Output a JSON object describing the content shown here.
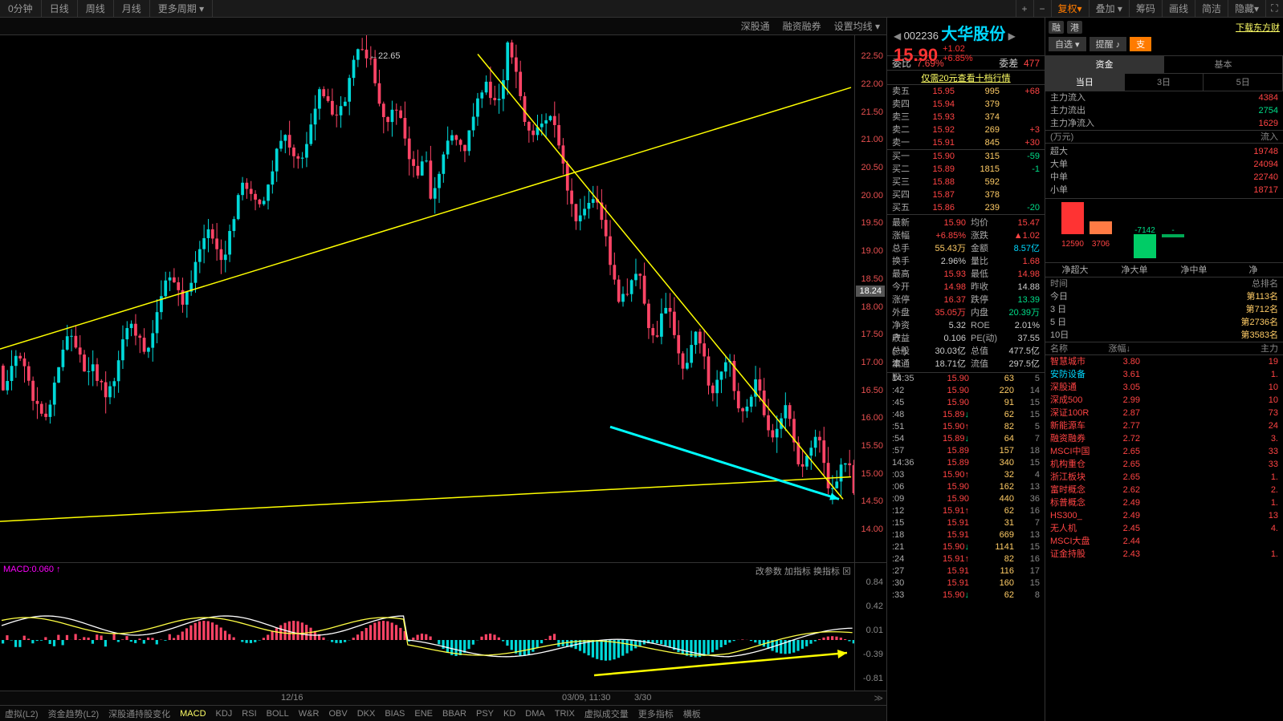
{
  "topbar": {
    "tabs": [
      "0分钟",
      "日线",
      "周线",
      "月线",
      "更多周期 ▾"
    ],
    "icons_plus": "+",
    "icons_minus": "−",
    "btn_fq": "复权▾",
    "btn_dj": "叠加 ▾",
    "btn_cm": "筹码",
    "btn_hx": "画线",
    "btn_jj": "简洁",
    "btn_yc": "隐藏▾"
  },
  "subtoolbar": {
    "a": "深股通",
    "b": "融资融券",
    "c": "设置均线 ▾"
  },
  "chart": {
    "high_label": "22.65",
    "yticks": [
      22.5,
      22.0,
      21.5,
      21.0,
      20.5,
      20.0,
      19.5,
      19.0,
      18.5,
      18.0,
      17.5,
      17.0,
      16.5,
      16.0,
      15.5,
      15.0,
      14.5,
      14.0
    ],
    "y_current": 18.24,
    "dates": {
      "d1": "12/16",
      "d2": "03/09, 11:30",
      "d3": "3/30"
    },
    "indicators": [
      "虚拟(L2)",
      "资金趋势(L2)",
      "深股通持股变化",
      "MACD",
      "KDJ",
      "RSI",
      "BOLL",
      "W&R",
      "OBV",
      "DKX",
      "BIAS",
      "ENE",
      "BBAR",
      "PSY",
      "KD",
      "DMA",
      "TRIX",
      "虚拟成交量",
      "更多指标",
      "横板"
    ]
  },
  "macd": {
    "label": "MACD:0.060 ↑",
    "right": "改参数 加指标 换指标 ⊠",
    "yticks": [
      0.84,
      0.42,
      0.01,
      -0.39,
      -0.81
    ]
  },
  "stock": {
    "code": "002236",
    "name": "大华股份",
    "price": "15.90",
    "chg": "+1.02",
    "pct": "+6.85%",
    "ratio_l": "委比",
    "ratio_lv": "7.69%",
    "ratio_r": "委差",
    "ratio_rv": "477",
    "promo": "仅需20元查看十档行情",
    "asks": [
      [
        "卖五",
        "15.95",
        "995",
        "+68"
      ],
      [
        "卖四",
        "15.94",
        "379",
        ""
      ],
      [
        "卖三",
        "15.93",
        "374",
        ""
      ],
      [
        "卖二",
        "15.92",
        "269",
        "+3"
      ],
      [
        "卖一",
        "15.91",
        "845",
        "+30"
      ]
    ],
    "bids": [
      [
        "买一",
        "15.90",
        "315",
        "-59"
      ],
      [
        "买二",
        "15.89",
        "1815",
        "-1"
      ],
      [
        "买三",
        "15.88",
        "592",
        ""
      ],
      [
        "买四",
        "15.87",
        "378",
        ""
      ],
      [
        "买五",
        "15.86",
        "239",
        "-20"
      ]
    ],
    "stats": [
      [
        "最新",
        "15.90",
        "均价",
        "15.47",
        "red",
        "red"
      ],
      [
        "涨幅",
        "+6.85%",
        "涨跌",
        "▲1.02",
        "red",
        "red"
      ],
      [
        "总手",
        "55.43万",
        "金额",
        "8.57亿",
        "yel",
        "cyan"
      ],
      [
        "换手",
        "2.96%",
        "量比",
        "1.68",
        "wht",
        "red"
      ],
      [
        "最高",
        "15.93",
        "最低",
        "14.98",
        "red",
        "red"
      ],
      [
        "今开",
        "14.98",
        "昨收",
        "14.88",
        "red",
        "wht"
      ],
      [
        "涨停",
        "16.37",
        "跌停",
        "13.39",
        "red",
        "grn"
      ],
      [
        "外盘",
        "35.05万",
        "内盘",
        "20.39万",
        "red",
        "grn"
      ],
      [
        "净资产",
        "5.32",
        "ROE",
        "2.01%",
        "wht",
        "wht"
      ],
      [
        "收益(一)",
        "0.106",
        "PE(动)",
        "37.55",
        "wht",
        "wht"
      ],
      [
        "总股本",
        "30.03亿",
        "总值",
        "477.5亿",
        "wht",
        "wht"
      ],
      [
        "流通股",
        "18.71亿",
        "流值",
        "297.5亿",
        "wht",
        "wht"
      ]
    ],
    "ticks": [
      [
        "14:35",
        "15.90",
        "",
        "63",
        "5"
      ],
      [
        ":42",
        "15.90",
        "",
        "220",
        "14"
      ],
      [
        ":45",
        "15.90",
        "",
        "91",
        "15"
      ],
      [
        ":48",
        "15.89",
        "dn",
        "62",
        "15"
      ],
      [
        ":51",
        "15.90",
        "up",
        "82",
        "5"
      ],
      [
        ":54",
        "15.89",
        "dn",
        "64",
        "7"
      ],
      [
        ":57",
        "15.89",
        "",
        "157",
        "18"
      ],
      [
        "14:36",
        "15.89",
        "",
        "340",
        "15"
      ],
      [
        ":03",
        "15.90",
        "up",
        "32",
        "4"
      ],
      [
        ":06",
        "15.90",
        "",
        "162",
        "13"
      ],
      [
        ":09",
        "15.90",
        "",
        "440",
        "36"
      ],
      [
        ":12",
        "15.91",
        "up",
        "62",
        "16"
      ],
      [
        ":15",
        "15.91",
        "",
        "31",
        "7"
      ],
      [
        ":18",
        "15.91",
        "",
        "669",
        "13"
      ],
      [
        ":21",
        "15.90",
        "dn",
        "1141",
        "15"
      ],
      [
        ":24",
        "15.91",
        "up",
        "82",
        "16"
      ],
      [
        ":27",
        "15.91",
        "",
        "116",
        "17"
      ],
      [
        ":30",
        "15.91",
        "",
        "160",
        "15"
      ],
      [
        ":33",
        "15.90",
        "dn",
        "62",
        "8"
      ]
    ]
  },
  "right2": {
    "badge1": "融",
    "badge2": "港",
    "dl": "下载东方财",
    "b1": "自选 ▾",
    "b2": "提醒 ♪",
    "b3": "支",
    "tabs_main": [
      "资金",
      "基本"
    ],
    "tab_main_on": 0,
    "tabs_day": [
      "当日",
      "3日",
      "5日"
    ],
    "tab_day_on": 0,
    "flows": [
      [
        "主力流入",
        "4384",
        "red"
      ],
      [
        "主力流出",
        "2754",
        "grn"
      ],
      [
        "主力净流入",
        "1629",
        "red"
      ]
    ],
    "unit": "(万元)",
    "unit_r": "流入",
    "orders": [
      [
        "超大",
        "19748"
      ],
      [
        "大单",
        "24094"
      ],
      [
        "中单",
        "22740"
      ],
      [
        "小单",
        "18717"
      ]
    ],
    "bars": {
      "b1": {
        "h": 50,
        "c": "#ff3333",
        "v": "12590"
      },
      "b2": {
        "h": 16,
        "c": "#ff7b44",
        "v": "3706"
      },
      "b3": {
        "h": 30,
        "c": "#00cc66",
        "v": "-7142"
      },
      "b4": {
        "h": 4,
        "c": "#00aa55",
        "v": "-"
      }
    },
    "net_labels": [
      "净超大",
      "净大单",
      "净中单",
      "净"
    ],
    "rank_hdr": [
      "时间",
      "总排名"
    ],
    "ranks": [
      [
        "今日",
        "第113名"
      ],
      [
        "3 日",
        "第712名"
      ],
      [
        "5 日",
        "第2736名"
      ],
      [
        "10日",
        "第3583名"
      ]
    ],
    "sec_hdr": [
      "名称",
      "涨幅↓",
      "主力"
    ],
    "sectors": [
      [
        "智慧城市",
        "3.80",
        "19",
        "red",
        "red"
      ],
      [
        "安防设备",
        "3.61",
        "1.",
        "cyan",
        "red"
      ],
      [
        "深股通",
        "3.05",
        "10",
        "red",
        "red"
      ],
      [
        "深成500",
        "2.99",
        "10",
        "red",
        "red"
      ],
      [
        "深证100R",
        "2.87",
        "73",
        "red",
        "red"
      ],
      [
        "新能源车",
        "2.77",
        "24",
        "red",
        "red"
      ],
      [
        "融资融券",
        "2.72",
        "3.",
        "red",
        "red"
      ],
      [
        "MSCI中国",
        "2.65",
        "33",
        "red",
        "red"
      ],
      [
        "机构重仓",
        "2.65",
        "33",
        "red",
        "red"
      ],
      [
        "浙江板块",
        "2.65",
        "1.",
        "red",
        "red"
      ],
      [
        "富时概念",
        "2.62",
        "2.",
        "red",
        "red"
      ],
      [
        "标普概念",
        "2.49",
        "1.",
        "red",
        "red"
      ],
      [
        "HS300_",
        "2.49",
        "13",
        "red",
        "red"
      ],
      [
        "无人机",
        "2.45",
        "4.",
        "red",
        "red"
      ],
      [
        "MSCI大盘",
        "2.44",
        "",
        "red",
        "red"
      ],
      [
        "证金持股",
        "2.43",
        "1.",
        "red",
        "red"
      ]
    ]
  },
  "colors": {
    "up": "#ff4444",
    "dn": "#00dd88",
    "cyan": "#00d8ff",
    "yellow": "#ffff00"
  }
}
